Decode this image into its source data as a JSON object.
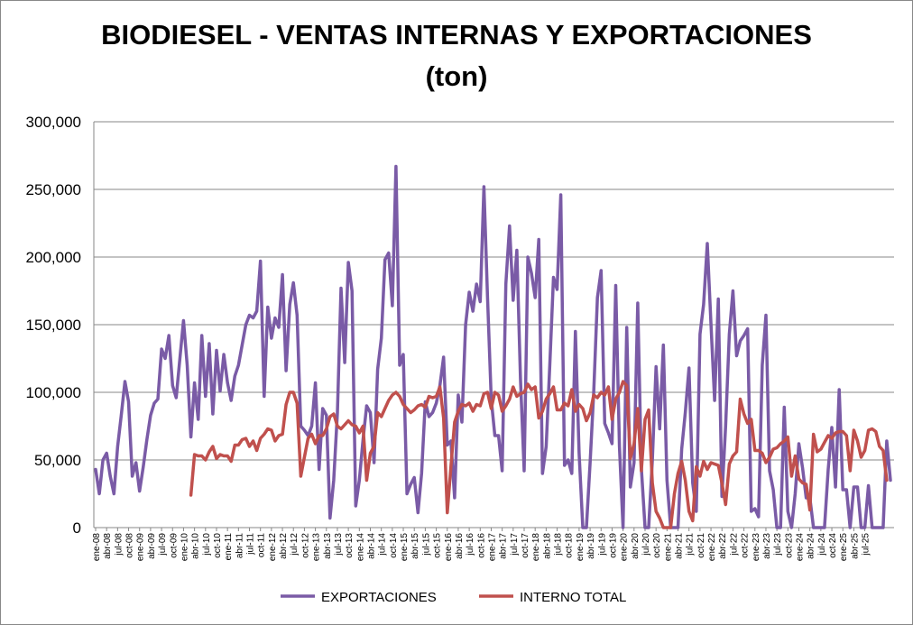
{
  "chart_data": {
    "type": "line",
    "title": "BIODIESEL - VENTAS INTERNAS Y EXPORTACIONES",
    "subtitle": "(ton)",
    "xlabel": "",
    "ylabel": "",
    "ylim": [
      0,
      300000
    ],
    "yticks": [
      "0",
      "50,000",
      "100,000",
      "150,000",
      "200,000",
      "250,000",
      "300,000"
    ],
    "grid": true,
    "legend": "bottom",
    "x_start": "ene-08",
    "x_ticks": [
      "ene-08",
      "abr-08",
      "jul-08",
      "oct-08",
      "ene-09",
      "abr-09",
      "jul-09",
      "oct-09",
      "ene-10",
      "abr-10",
      "jul-10",
      "oct-10",
      "ene-11",
      "abr-11",
      "jul-11",
      "oct-11",
      "ene-12",
      "abr-12",
      "jul-12",
      "oct-12",
      "ene-13",
      "abr-13",
      "jul-13",
      "oct-13",
      "ene-14",
      "abr-14",
      "jul-14",
      "oct-14",
      "ene-15",
      "abr-15",
      "jul-15",
      "oct-15",
      "ene-16",
      "abr-16",
      "jul-16",
      "oct-16",
      "ene-17",
      "abr-17",
      "jul-17",
      "oct-17",
      "ene-18",
      "abr-18",
      "jul-18",
      "oct-18",
      "ene-19",
      "abr-19",
      "jul-19",
      "oct-19",
      "ene-20",
      "abr-20",
      "jul-20",
      "oct-20",
      "ene-21",
      "abr-21",
      "jul-21",
      "oct-21",
      "ene-22",
      "abr-22",
      "jul-22",
      "oct-22",
      "ene-23",
      "abr-23",
      "jul-23",
      "oct-23",
      "ene-24",
      "abr-24",
      "jul-24",
      "oct-24",
      "ene-25",
      "abr-25",
      "jul-25"
    ],
    "series": [
      {
        "name": "EXPORTACIONES",
        "color": "#7A5BA6",
        "values": [
          43000,
          25000,
          50000,
          55000,
          38000,
          25000,
          60000,
          83000,
          108000,
          93000,
          38000,
          48000,
          27000,
          45000,
          65000,
          83000,
          92000,
          95000,
          132000,
          125000,
          142000,
          105000,
          96000,
          125000,
          153000,
          120000,
          67000,
          107000,
          80000,
          142000,
          97000,
          136000,
          84000,
          131000,
          101000,
          128000,
          107000,
          94000,
          112000,
          120000,
          135000,
          150000,
          157000,
          155000,
          160000,
          197000,
          97000,
          163000,
          140000,
          155000,
          148000,
          187000,
          116000,
          165000,
          181000,
          157000,
          75000,
          72000,
          68000,
          75000,
          107000,
          43000,
          88000,
          83000,
          7000,
          35000,
          85000,
          177000,
          122000,
          196000,
          175000,
          16000,
          35000,
          65000,
          90000,
          85000,
          48000,
          117000,
          140000,
          198000,
          203000,
          164000,
          267000,
          120000,
          128000,
          25000,
          32000,
          37000,
          11000,
          40000,
          93000,
          82000,
          85000,
          92000,
          105000,
          126000,
          61000,
          64000,
          22000,
          98000,
          78000,
          150000,
          174000,
          160000,
          180000,
          167000,
          252000,
          170000,
          95000,
          68000,
          68000,
          42000,
          180000,
          223000,
          168000,
          205000,
          110000,
          42000,
          200000,
          188000,
          170000,
          213000,
          40000,
          60000,
          120000,
          185000,
          176000,
          246000,
          46000,
          50000,
          40000,
          145000,
          55000,
          0,
          0,
          48000,
          100000,
          170000,
          190000,
          77000,
          70000,
          62000,
          179000,
          60000,
          0,
          148000,
          30000,
          48000,
          166000,
          44000,
          0,
          0,
          50000,
          119000,
          73000,
          135000,
          35000,
          0,
          0,
          0,
          58000,
          85000,
          118000,
          33000,
          12000,
          143000,
          165000,
          210000,
          150000,
          94000,
          169000,
          23000,
          75000,
          143000,
          175000,
          127000,
          138000,
          142000,
          147000,
          12000,
          14000,
          8000,
          120000,
          157000,
          42000,
          28000,
          0,
          0,
          89000,
          12000,
          0,
          25000,
          62000,
          44000,
          22000,
          22000,
          0,
          0,
          0,
          0,
          43000,
          74000,
          30000,
          102000,
          28000,
          28000,
          0,
          30000,
          30000,
          0,
          0,
          31000,
          0,
          0,
          0,
          0,
          64000,
          35000
        ]
      },
      {
        "name": "INTERNO TOTAL",
        "color": "#C0504D",
        "start_index": 26,
        "values": [
          24000,
          54000,
          53000,
          53000,
          50000,
          56000,
          60000,
          51000,
          54000,
          53000,
          53000,
          49000,
          61000,
          61000,
          65000,
          66000,
          60000,
          64000,
          57000,
          66000,
          69000,
          73000,
          72000,
          64000,
          68000,
          69000,
          91000,
          100000,
          100000,
          92000,
          38000,
          52000,
          66000,
          69000,
          62000,
          68000,
          68000,
          73000,
          82000,
          84000,
          75000,
          73000,
          76000,
          79000,
          76000,
          75000,
          70000,
          75000,
          35000,
          55000,
          60000,
          85000,
          82000,
          88000,
          94000,
          98000,
          100000,
          97000,
          91000,
          88000,
          85000,
          87000,
          90000,
          91000,
          89000,
          97000,
          96000,
          97000,
          104000,
          81000,
          11000,
          45000,
          78000,
          86000,
          91000,
          90000,
          92000,
          86000,
          91000,
          90000,
          99000,
          100000,
          88000,
          100000,
          98000,
          86000,
          90000,
          95000,
          104000,
          97000,
          99000,
          100000,
          106000,
          102000,
          104000,
          81000,
          86000,
          95000,
          99000,
          104000,
          87000,
          87000,
          92000,
          90000,
          102000,
          86000,
          91000,
          88000,
          79000,
          85000,
          98000,
          96000,
          100000,
          98000,
          104000,
          80000,
          95000,
          100000,
          108000,
          105000,
          51000,
          62000,
          88000,
          42000,
          80000,
          87000,
          33000,
          12000,
          7000,
          0,
          0,
          0,
          25000,
          40000,
          49000,
          35000,
          12000,
          5000,
          45000,
          38000,
          49000,
          43000,
          48000,
          47000,
          46000,
          33000,
          17000,
          47000,
          53000,
          56000,
          95000,
          84000,
          77000,
          80000,
          57000,
          57000,
          55000,
          48000,
          52000,
          58000,
          59000,
          62000,
          64000,
          67000,
          38000,
          53000,
          36000,
          33000,
          32000,
          13000,
          69000,
          56000,
          58000,
          63000,
          68000,
          66000,
          70000,
          71000,
          71000,
          68000,
          42000,
          72000,
          64000,
          52000,
          57000,
          72000,
          73000,
          71000,
          60000,
          57000,
          35000
        ]
      }
    ]
  }
}
